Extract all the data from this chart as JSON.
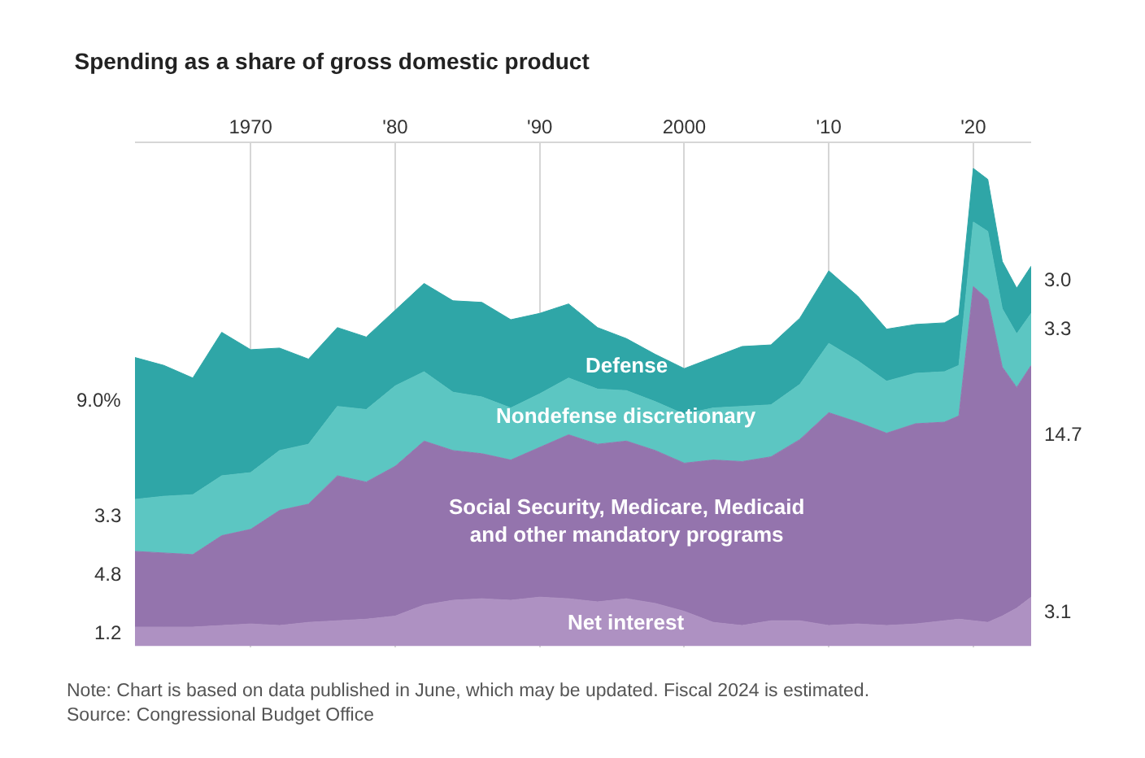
{
  "chart_data": {
    "type": "area",
    "stacked": true,
    "title": "Spending as a share of gross domestic product",
    "x": [
      1962,
      1964,
      1966,
      1968,
      1970,
      1972,
      1974,
      1976,
      1978,
      1980,
      1982,
      1984,
      1986,
      1988,
      1990,
      1992,
      1994,
      1996,
      1998,
      2000,
      2002,
      2004,
      2006,
      2008,
      2010,
      2012,
      2014,
      2016,
      2018,
      2019,
      2020,
      2021,
      2022,
      2023,
      2024
    ],
    "xticks": [
      1970,
      {
        "value": 1980,
        "label": "'80"
      },
      {
        "value": 1990,
        "label": "'90"
      },
      2000,
      {
        "value": 2010,
        "label": "'10"
      },
      {
        "value": 2020,
        "label": "'20"
      }
    ],
    "xlim": [
      1962,
      2024
    ],
    "grid": "x",
    "tick_labels": "x",
    "series": [
      {
        "name": "Net interest",
        "color": "#ae91c2",
        "values": [
          1.2,
          1.2,
          1.2,
          1.3,
          1.4,
          1.3,
          1.5,
          1.6,
          1.7,
          1.9,
          2.6,
          2.9,
          3.0,
          2.9,
          3.1,
          3.0,
          2.8,
          3.0,
          2.7,
          2.2,
          1.5,
          1.3,
          1.6,
          1.6,
          1.3,
          1.4,
          1.3,
          1.4,
          1.6,
          1.7,
          1.6,
          1.5,
          1.9,
          2.4,
          3.1
        ],
        "value_labels": [
          "1.2",
          null,
          null,
          null,
          null,
          null,
          null,
          null,
          null,
          null,
          null,
          null,
          null,
          null,
          null,
          null,
          null,
          null,
          null,
          null,
          null,
          null,
          null,
          null,
          null,
          null,
          null,
          null,
          null,
          null,
          null,
          null,
          null,
          null,
          "3.1"
        ]
      },
      {
        "name": "Social Security, Medicare, Medicaid\nand other mandatory programs",
        "color": "#9474ad",
        "values": [
          4.8,
          4.7,
          4.6,
          5.7,
          6.0,
          7.3,
          7.5,
          9.2,
          8.7,
          9.5,
          10.4,
          9.5,
          9.2,
          8.9,
          9.5,
          10.4,
          10.0,
          10.0,
          9.7,
          9.4,
          10.3,
          10.4,
          10.4,
          11.5,
          13.5,
          12.8,
          12.2,
          12.7,
          12.6,
          12.9,
          21.2,
          20.5,
          15.8,
          14.0,
          14.7
        ],
        "value_labels": [
          "4.8",
          null,
          null,
          null,
          null,
          null,
          null,
          null,
          null,
          null,
          null,
          null,
          null,
          null,
          null,
          null,
          null,
          null,
          null,
          null,
          null,
          null,
          null,
          null,
          null,
          null,
          null,
          null,
          null,
          null,
          null,
          null,
          null,
          null,
          "14.7"
        ]
      },
      {
        "name": "Nondefense discretionary",
        "color": "#5cc6c2",
        "values": [
          3.3,
          3.6,
          3.8,
          3.8,
          3.6,
          3.8,
          3.8,
          4.4,
          4.6,
          5.1,
          4.4,
          3.7,
          3.6,
          3.3,
          3.4,
          3.6,
          3.5,
          3.2,
          3.1,
          3.1,
          3.3,
          3.5,
          3.3,
          3.5,
          4.4,
          3.9,
          3.3,
          3.2,
          3.2,
          3.2,
          4.1,
          4.3,
          3.7,
          3.4,
          3.3
        ],
        "value_labels": [
          "3.3",
          null,
          null,
          null,
          null,
          null,
          null,
          null,
          null,
          null,
          null,
          null,
          null,
          null,
          null,
          null,
          null,
          null,
          null,
          null,
          null,
          null,
          null,
          null,
          null,
          null,
          null,
          null,
          null,
          null,
          null,
          null,
          null,
          null,
          "3.3"
        ]
      },
      {
        "name": "Defense",
        "color": "#2fa6a7",
        "values": [
          9.0,
          8.3,
          7.4,
          9.1,
          7.8,
          6.5,
          5.4,
          5.0,
          4.6,
          4.8,
          5.6,
          5.8,
          6.0,
          5.6,
          5.1,
          4.7,
          3.9,
          3.3,
          3.0,
          2.9,
          3.2,
          3.8,
          3.8,
          4.2,
          4.6,
          4.1,
          3.3,
          3.1,
          3.1,
          3.2,
          3.4,
          3.3,
          3.0,
          2.9,
          3.0
        ],
        "value_labels": [
          "9.0%",
          null,
          null,
          null,
          null,
          null,
          null,
          null,
          null,
          null,
          null,
          null,
          null,
          null,
          null,
          null,
          null,
          null,
          null,
          null,
          null,
          null,
          null,
          null,
          null,
          null,
          null,
          null,
          null,
          null,
          null,
          null,
          null,
          null,
          "3.0"
        ]
      }
    ],
    "annotations": [
      "Note: Chart is based on data published in June, which may be updated. Fiscal 2024 is estimated.",
      "Source: Congressional Budget Office"
    ]
  }
}
